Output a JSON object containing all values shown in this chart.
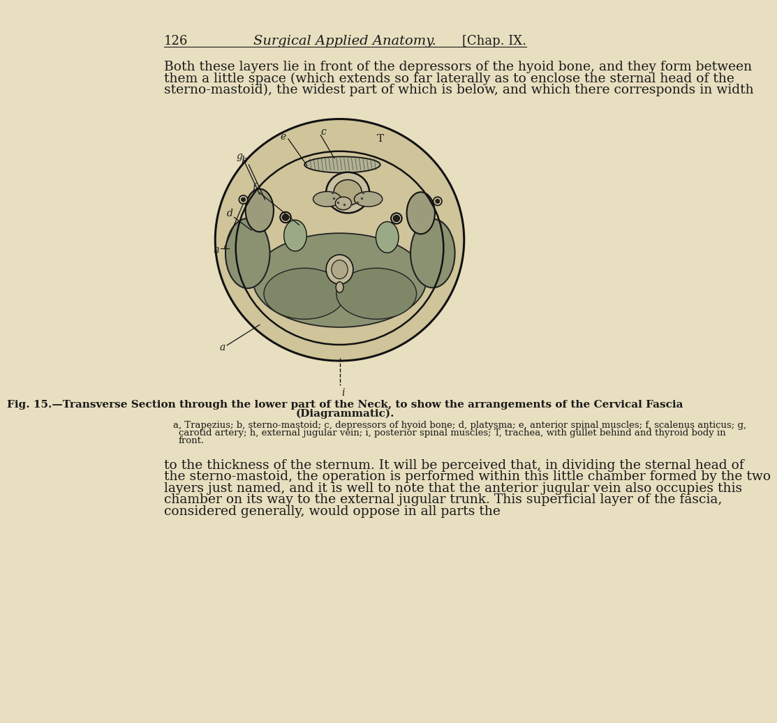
{
  "background_color": "#e8dfc0",
  "page_number": "126",
  "header_title": "Surgical Applied Anatomy.",
  "header_chapter": "[Chap. IX.",
  "para1": "Both these layers lie in front of the depressors of the hyoid bone, and they form between them a little space (which extends so far laterally as to enclose the sternal head of the sterno-mastoid), the widest part of which is below, and which there corresponds in width",
  "fig_caption_bold": "Fig. 15.—Transverse Section through the lower part of the Neck, to show the arrangements of the Cervical Fascia (Diagrammatic).",
  "fig_legend": "a, Trapezius; b, sterno-mastoid; c, depressors of hyoid bone; d, platysma; e, anterior spinal muscles; f, scalenus anticus; g, carotid artery; h, external jugular vein; i, posterior spinal muscles; T, trachea, with gullet behind and thyroid body in front.",
  "para2": "to the thickness of the sternum.  It will be perceived that, in dividing the sternal head of the sterno-mastoid, the operation is performed within this little chamber formed by the two layers just named, and it is well to note that the anterior jugular vein also occupies this chamber on its way to the external jugular trunk.  This superficial layer of the fascia, considered generally, would oppose in all parts the",
  "text_color": "#1a1a1a",
  "font_size_body": 13.5,
  "font_size_header": 13,
  "font_size_caption": 11,
  "font_size_legend": 9.5
}
